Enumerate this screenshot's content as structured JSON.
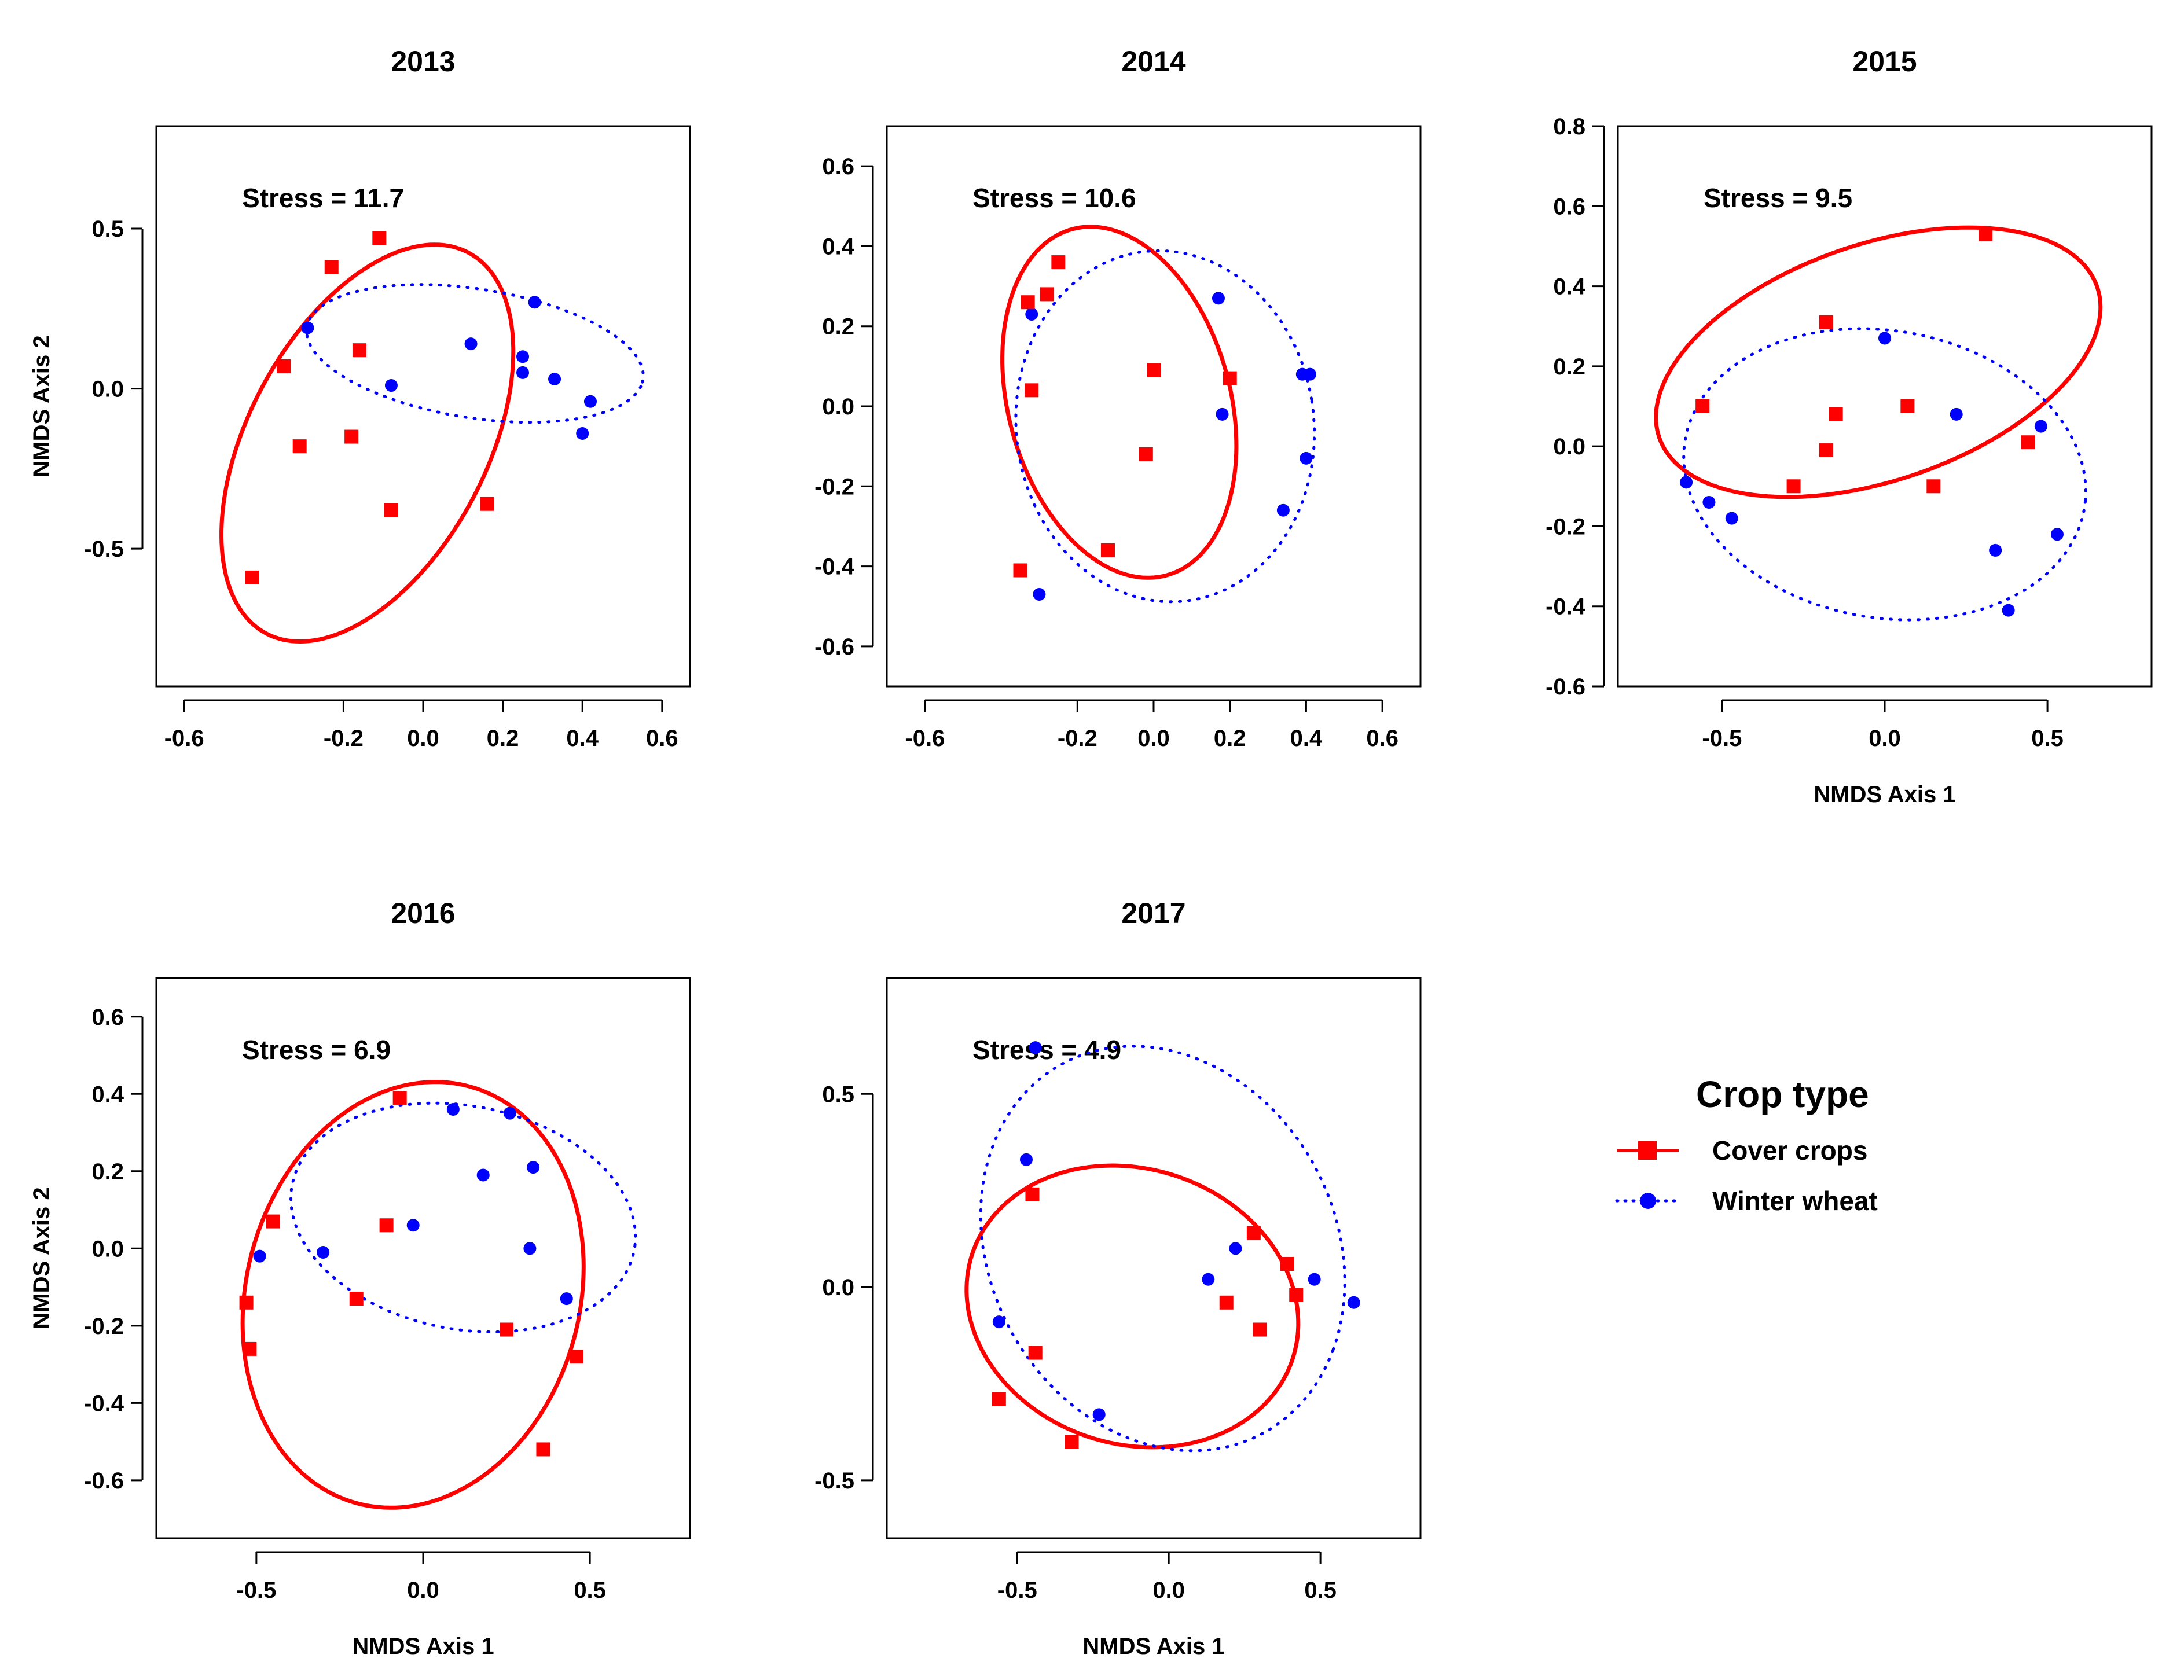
{
  "chart_data": [
    {
      "type": "scatter",
      "title": "2013",
      "stress": "Stress = 11.7",
      "xlabel": "",
      "ylabel": "NMDS Axis 2",
      "xlim": [
        -0.67,
        0.67
      ],
      "ylim": [
        -0.93,
        0.82
      ],
      "xticks": [
        {
          "v": -0.6,
          "l": "-0.6"
        },
        {
          "v": -0.2,
          "l": "-0.2"
        },
        {
          "v": 0,
          "l": "0.0"
        },
        {
          "v": 0.2,
          "l": "0.2"
        },
        {
          "v": 0.4,
          "l": "0.4"
        },
        {
          "v": 0.6,
          "l": "0.6"
        }
      ],
      "yticks": [
        {
          "v": -0.5,
          "l": "-0.5"
        },
        {
          "v": 0,
          "l": "0.0"
        },
        {
          "v": 0.5,
          "l": "0.5"
        }
      ],
      "series": [
        {
          "name": "Cover crops",
          "points": [
            [
              -0.43,
              -0.59
            ],
            [
              -0.23,
              0.38
            ],
            [
              -0.11,
              0.47
            ],
            [
              -0.35,
              0.07
            ],
            [
              -0.31,
              -0.18
            ],
            [
              -0.16,
              0.12
            ],
            [
              -0.18,
              -0.15
            ],
            [
              -0.08,
              -0.38
            ],
            [
              0.16,
              -0.36
            ]
          ],
          "ellipse": {
            "cx": -0.14,
            "cy": -0.17,
            "rx": 0.31,
            "ry": 0.65,
            "angle": -20
          }
        },
        {
          "name": "Winter wheat",
          "points": [
            [
              -0.29,
              0.19
            ],
            [
              -0.08,
              0.01
            ],
            [
              0.12,
              0.14
            ],
            [
              0.25,
              0.1
            ],
            [
              0.25,
              0.05
            ],
            [
              0.28,
              0.27
            ],
            [
              0.33,
              0.03
            ],
            [
              0.42,
              -0.04
            ],
            [
              0.4,
              -0.14
            ]
          ],
          "ellipse": {
            "cx": 0.13,
            "cy": 0.11,
            "rx": 0.43,
            "ry": 0.2,
            "angle": -12
          }
        }
      ]
    },
    {
      "type": "scatter",
      "title": "2014",
      "stress": "Stress = 10.6",
      "xlabel": "",
      "ylabel": "",
      "xlim": [
        -0.7,
        0.7
      ],
      "ylim": [
        -0.7,
        0.7
      ],
      "xticks": [
        {
          "v": -0.6,
          "l": "-0.6"
        },
        {
          "v": -0.2,
          "l": "-0.2"
        },
        {
          "v": 0,
          "l": "0.0"
        },
        {
          "v": 0.2,
          "l": "0.2"
        },
        {
          "v": 0.4,
          "l": "0.4"
        },
        {
          "v": 0.6,
          "l": "0.6"
        }
      ],
      "yticks": [
        {
          "v": -0.6,
          "l": "-0.6"
        },
        {
          "v": -0.4,
          "l": "-0.4"
        },
        {
          "v": -0.2,
          "l": "-0.2"
        },
        {
          "v": 0,
          "l": "0.0"
        },
        {
          "v": 0.2,
          "l": "0.2"
        },
        {
          "v": 0.4,
          "l": "0.4"
        },
        {
          "v": 0.6,
          "l": "0.6"
        }
      ],
      "series": [
        {
          "name": "Cover crops",
          "points": [
            [
              -0.33,
              0.26
            ],
            [
              -0.28,
              0.28
            ],
            [
              -0.25,
              0.36
            ],
            [
              -0.32,
              0.04
            ],
            [
              0.0,
              0.09
            ],
            [
              0.2,
              0.07
            ],
            [
              -0.02,
              -0.12
            ],
            [
              -0.12,
              -0.36
            ],
            [
              -0.35,
              -0.41
            ]
          ],
          "ellipse": {
            "cx": -0.09,
            "cy": 0.01,
            "rx": 0.29,
            "ry": 0.45,
            "angle": 17
          }
        },
        {
          "name": "Winter wheat",
          "points": [
            [
              -0.32,
              0.23
            ],
            [
              0.17,
              0.27
            ],
            [
              0.39,
              0.08
            ],
            [
              0.41,
              0.08
            ],
            [
              0.18,
              -0.02
            ],
            [
              0.4,
              -0.13
            ],
            [
              0.34,
              -0.26
            ],
            [
              -0.3,
              -0.47
            ]
          ],
          "ellipse": {
            "cx": 0.03,
            "cy": -0.05,
            "rx": 0.39,
            "ry": 0.44,
            "angle": 10
          }
        }
      ]
    },
    {
      "type": "scatter",
      "title": "2015",
      "stress": "Stress = 9.5",
      "xlabel": "NMDS Axis 1",
      "ylabel": "",
      "xlim": [
        -0.82,
        0.82
      ],
      "ylim": [
        -0.6,
        0.8
      ],
      "xticks": [
        {
          "v": -0.5,
          "l": "-0.5"
        },
        {
          "v": 0,
          "l": "0.0"
        },
        {
          "v": 0.5,
          "l": "0.5"
        }
      ],
      "yticks": [
        {
          "v": -0.6,
          "l": "-0.6"
        },
        {
          "v": -0.4,
          "l": "-0.4"
        },
        {
          "v": -0.2,
          "l": "-0.2"
        },
        {
          "v": 0,
          "l": "0.0"
        },
        {
          "v": 0.2,
          "l": "0.2"
        },
        {
          "v": 0.4,
          "l": "0.4"
        },
        {
          "v": 0.6,
          "l": "0.6"
        },
        {
          "v": 0.8,
          "l": "0.8"
        }
      ],
      "series": [
        {
          "name": "Cover crops",
          "points": [
            [
              0.31,
              0.53
            ],
            [
              -0.18,
              0.31
            ],
            [
              -0.56,
              0.1
            ],
            [
              -0.15,
              0.08
            ],
            [
              0.07,
              0.1
            ],
            [
              -0.18,
              -0.01
            ],
            [
              0.44,
              0.01
            ],
            [
              -0.28,
              -0.1
            ],
            [
              0.15,
              -0.1
            ]
          ],
          "ellipse": {
            "cx": -0.02,
            "cy": 0.21,
            "rx": 0.7,
            "ry": 0.3,
            "angle": 14
          }
        },
        {
          "name": "Winter wheat",
          "points": [
            [
              0.0,
              0.27
            ],
            [
              0.22,
              0.08
            ],
            [
              0.48,
              0.05
            ],
            [
              -0.61,
              -0.09
            ],
            [
              -0.54,
              -0.14
            ],
            [
              -0.47,
              -0.18
            ],
            [
              0.34,
              -0.26
            ],
            [
              0.53,
              -0.22
            ],
            [
              0.38,
              -0.41
            ]
          ],
          "ellipse": {
            "cx": 0.0,
            "cy": -0.07,
            "rx": 0.62,
            "ry": 0.36,
            "angle": -6
          }
        }
      ]
    },
    {
      "type": "scatter",
      "title": "2016",
      "stress": "Stress = 6.9",
      "xlabel": "NMDS Axis 1",
      "ylabel": "NMDS Axis 2",
      "xlim": [
        -0.8,
        0.8
      ],
      "ylim": [
        -0.75,
        0.7
      ],
      "xticks": [
        {
          "v": -0.5,
          "l": "-0.5"
        },
        {
          "v": 0,
          "l": "0.0"
        },
        {
          "v": 0.5,
          "l": "0.5"
        }
      ],
      "yticks": [
        {
          "v": -0.6,
          "l": "-0.6"
        },
        {
          "v": -0.4,
          "l": "-0.4"
        },
        {
          "v": -0.2,
          "l": "-0.2"
        },
        {
          "v": 0,
          "l": "0.0"
        },
        {
          "v": 0.2,
          "l": "0.2"
        },
        {
          "v": 0.4,
          "l": "0.4"
        },
        {
          "v": 0.6,
          "l": "0.6"
        }
      ],
      "series": [
        {
          "name": "Cover crops",
          "points": [
            [
              -0.07,
              0.39
            ],
            [
              -0.45,
              0.07
            ],
            [
              -0.11,
              0.06
            ],
            [
              -0.53,
              -0.14
            ],
            [
              -0.2,
              -0.13
            ],
            [
              -0.52,
              -0.26
            ],
            [
              0.25,
              -0.21
            ],
            [
              0.46,
              -0.28
            ],
            [
              0.36,
              -0.52
            ]
          ],
          "ellipse": {
            "cx": -0.03,
            "cy": -0.12,
            "rx": 0.49,
            "ry": 0.57,
            "angle": -30
          }
        },
        {
          "name": "Winter wheat",
          "points": [
            [
              0.09,
              0.36
            ],
            [
              0.26,
              0.35
            ],
            [
              0.18,
              0.19
            ],
            [
              0.33,
              0.21
            ],
            [
              -0.03,
              0.06
            ],
            [
              -0.3,
              -0.01
            ],
            [
              0.32,
              0.0
            ],
            [
              -0.49,
              -0.02
            ],
            [
              0.43,
              -0.13
            ]
          ],
          "ellipse": {
            "cx": 0.12,
            "cy": 0.08,
            "rx": 0.52,
            "ry": 0.29,
            "angle": -8
          }
        }
      ]
    },
    {
      "type": "scatter",
      "title": "2017",
      "stress": "Stress = 4.9",
      "xlabel": "NMDS Axis 1",
      "ylabel": "",
      "xlim": [
        -0.93,
        0.83
      ],
      "ylim": [
        -0.65,
        0.8
      ],
      "xticks": [
        {
          "v": -0.5,
          "l": "-0.5"
        },
        {
          "v": 0,
          "l": "0.0"
        },
        {
          "v": 0.5,
          "l": "0.5"
        }
      ],
      "yticks": [
        {
          "v": -0.5,
          "l": "-0.5"
        },
        {
          "v": 0,
          "l": "0.0"
        },
        {
          "v": 0.5,
          "l": "0.5"
        }
      ],
      "series": [
        {
          "name": "Cover crops",
          "points": [
            [
              -0.45,
              0.24
            ],
            [
              -0.44,
              -0.17
            ],
            [
              -0.56,
              -0.29
            ],
            [
              -0.32,
              -0.4
            ],
            [
              0.19,
              -0.04
            ],
            [
              0.28,
              0.14
            ],
            [
              0.3,
              -0.11
            ],
            [
              0.39,
              0.06
            ],
            [
              0.42,
              -0.02
            ]
          ],
          "ellipse": {
            "cx": -0.12,
            "cy": -0.05,
            "rx": 0.55,
            "ry": 0.36,
            "angle": -8
          }
        },
        {
          "name": "Winter wheat",
          "points": [
            [
              -0.44,
              0.62
            ],
            [
              -0.47,
              0.33
            ],
            [
              0.13,
              0.02
            ],
            [
              0.22,
              0.1
            ],
            [
              0.48,
              0.02
            ],
            [
              0.61,
              -0.04
            ],
            [
              -0.56,
              -0.09
            ],
            [
              -0.23,
              -0.33
            ]
          ],
          "ellipse": {
            "cx": -0.02,
            "cy": 0.1,
            "rx": 0.62,
            "ry": 0.5,
            "angle": -25
          }
        }
      ]
    }
  ],
  "legend": {
    "title": "Crop type",
    "items": [
      {
        "label": "Cover crops",
        "color": "#ff0000",
        "marker": "square-icon",
        "line": "solid"
      },
      {
        "label": "Winter wheat",
        "color": "#0000ff",
        "marker": "circle-icon",
        "line": "dotted"
      }
    ]
  },
  "colors": {
    "cover": "#ff0000",
    "wheat": "#0000ff"
  }
}
